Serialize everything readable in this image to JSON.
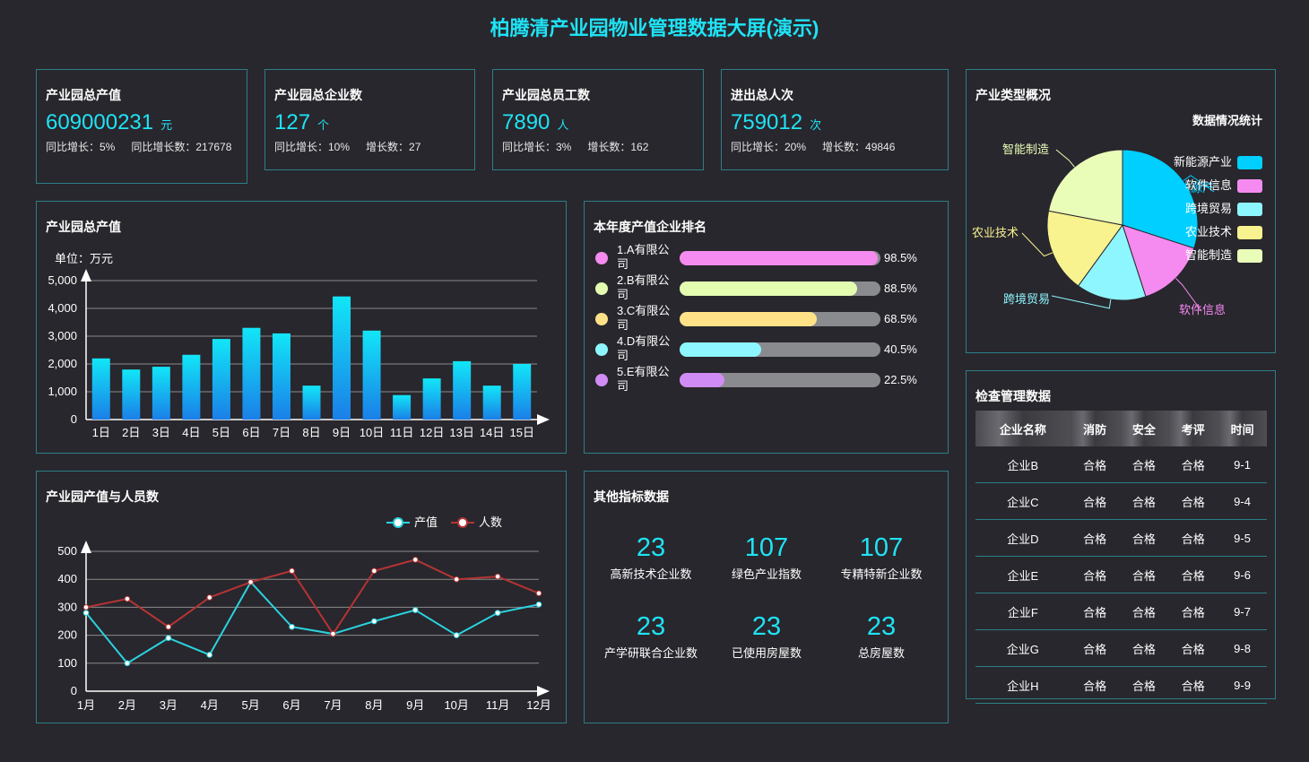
{
  "title": "柏腾清产业园物业管理数据大屏(演示)",
  "kpis": [
    {
      "label": "产业园总产值",
      "value": "609000231",
      "unit": "元",
      "growth": "同比增长：5%",
      "increase": "同比增长数：217678"
    },
    {
      "label": "产业园总企业数",
      "value": "127",
      "unit": "个",
      "growth": "同比增长：10%",
      "increase": "增长数：27"
    },
    {
      "label": "产业园总员工数",
      "value": "7890",
      "unit": "人",
      "growth": "同比增长：3%",
      "increase": "增长数：162"
    },
    {
      "label": "进出总人次",
      "value": "759012",
      "unit": "次",
      "growth": "同比增长：20%",
      "increase": "增长数：49846"
    }
  ],
  "panels": {
    "output_value": "产业园总产值",
    "ranking": "本年度产值企业排名",
    "output_people": "产业园产值与人员数",
    "other": "其他指标数据",
    "industry": "产业类型概况",
    "check": "检查管理数据"
  },
  "colors": {
    "accent": "#1fe3f5",
    "border": "#2c7f86",
    "background": "#28272d"
  },
  "chart_data": [
    {
      "type": "bar",
      "unit_label": "单位：万元",
      "categories": [
        "1日",
        "2日",
        "3日",
        "4日",
        "5日",
        "6日",
        "7日",
        "8日",
        "9日",
        "10日",
        "11日",
        "12日",
        "13日",
        "14日",
        "15日"
      ],
      "values": [
        2200,
        1800,
        1900,
        2330,
        2900,
        3300,
        3100,
        1220,
        4430,
        3200,
        880,
        1480,
        2100,
        1220,
        2000
      ],
      "yticks": [
        "0",
        "1,000",
        "2,000",
        "3,000",
        "4,000",
        "5,000"
      ],
      "ylim": [
        0,
        5000
      ],
      "grid": true,
      "bar_color": "#1fe3f5"
    },
    {
      "type": "line",
      "categories": [
        "1月",
        "2月",
        "3月",
        "4月",
        "5月",
        "6月",
        "7月",
        "8月",
        "9月",
        "10月",
        "11月",
        "12月"
      ],
      "series": [
        {
          "name": "产值",
          "color": "#2ad4e0",
          "values": [
            280,
            100,
            190,
            130,
            390,
            230,
            205,
            250,
            290,
            200,
            280,
            310
          ]
        },
        {
          "name": "人数",
          "color": "#b53434",
          "values": [
            300,
            330,
            230,
            335,
            390,
            430,
            205,
            430,
            470,
            400,
            410,
            350
          ]
        }
      ],
      "yticks": [
        "0",
        "100",
        "200",
        "300",
        "400",
        "500"
      ],
      "ylim": [
        0,
        500
      ],
      "grid": true,
      "legend": "top-right"
    },
    {
      "type": "pie",
      "subtitle": "数据情况统计",
      "slices": [
        {
          "name": "新能源产业",
          "color": "#00cfff",
          "value": 30
        },
        {
          "name": "软件信息",
          "color": "#f58af0",
          "value": 15
        },
        {
          "name": "跨境贸易",
          "color": "#8ef6ff",
          "value": 15
        },
        {
          "name": "农业技术",
          "color": "#f8f28f",
          "value": 18
        },
        {
          "name": "智能制造",
          "color": "#eafdb8",
          "value": 22
        }
      ],
      "outer_labels": [
        "新能源产",
        "软件信息",
        "跨境贸易",
        "农业技术",
        "智能制造"
      ],
      "legend": "right"
    }
  ],
  "ranking": [
    {
      "name": "1.A有限公司",
      "percent": 98.5,
      "label": "98.5%",
      "color": "#f58af0"
    },
    {
      "name": "2.B有限公司",
      "percent": 88.5,
      "label": "88.5%",
      "color": "#e3fcb0"
    },
    {
      "name": "3.C有限公司",
      "percent": 68.5,
      "label": "68.5%",
      "color": "#ffe287"
    },
    {
      "name": "4.D有限公司",
      "percent": 40.5,
      "label": "40.5%",
      "color": "#8ef6ff"
    },
    {
      "name": "5.E有限公司",
      "percent": 22.5,
      "label": "22.5%",
      "color": "#d08cf4"
    }
  ],
  "metrics": [
    {
      "value": "23",
      "label": "高新技术企业数"
    },
    {
      "value": "107",
      "label": "绿色产业指数"
    },
    {
      "value": "107",
      "label": "专精特新企业数"
    },
    {
      "value": "23",
      "label": "产学研联合企业数"
    },
    {
      "value": "23",
      "label": "已使用房屋数"
    },
    {
      "value": "23",
      "label": "总房屋数"
    }
  ],
  "check_table": {
    "headers": [
      "企业名称",
      "消防",
      "安全",
      "考评",
      "时间"
    ],
    "rows": [
      [
        "企业B",
        "合格",
        "合格",
        "合格",
        "9-1"
      ],
      [
        "企业C",
        "合格",
        "合格",
        "合格",
        "9-4"
      ],
      [
        "企业D",
        "合格",
        "合格",
        "合格",
        "9-5"
      ],
      [
        "企业E",
        "合格",
        "合格",
        "合格",
        "9-6"
      ],
      [
        "企业F",
        "合格",
        "合格",
        "合格",
        "9-7"
      ],
      [
        "企业G",
        "合格",
        "合格",
        "合格",
        "9-8"
      ],
      [
        "企业H",
        "合格",
        "合格",
        "合格",
        "9-9"
      ]
    ]
  }
}
